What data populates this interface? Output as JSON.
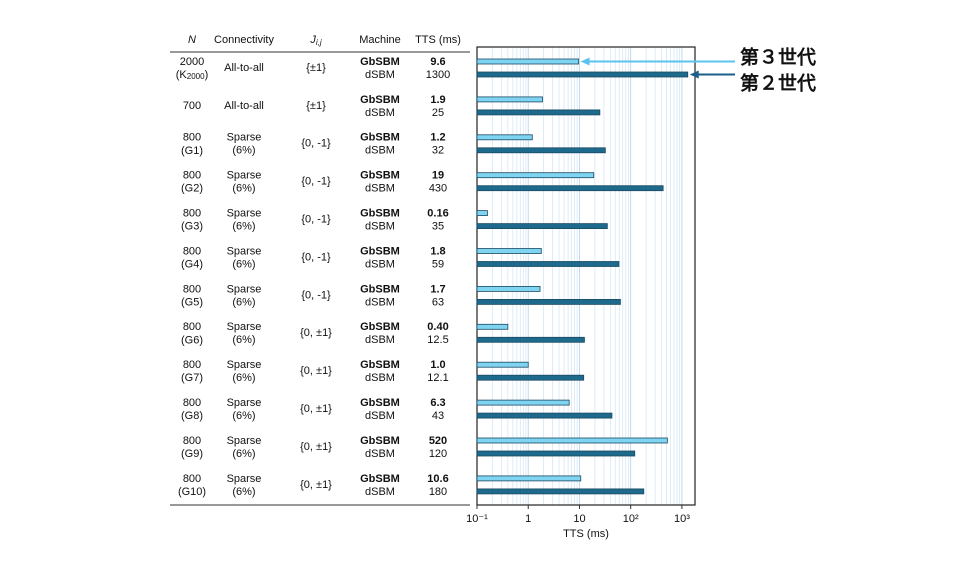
{
  "chart_data": {
    "type": "bar",
    "orientation": "horizontal",
    "log_scale": true,
    "headers": [
      "N",
      "Connectivity",
      {
        "text": "J",
        "sub": "i,j"
      },
      "Machine",
      "TTS (ms)"
    ],
    "rows": [
      {
        "n": "2000",
        "instance": "(K",
        "instance_sub": "2000",
        "instance_close": ")",
        "connectivity": [
          "All-to-all"
        ],
        "jij": "{±1}"
      },
      {
        "n": "700",
        "connectivity": [
          "All-to-all"
        ],
        "jij": "{±1}"
      },
      {
        "n": "800",
        "instance": "(G1)",
        "connectivity": [
          "Sparse",
          "(6%)"
        ],
        "jij": "{0, -1}"
      },
      {
        "n": "800",
        "instance": "(G2)",
        "connectivity": [
          "Sparse",
          "(6%)"
        ],
        "jij": "{0, -1}"
      },
      {
        "n": "800",
        "instance": "(G3)",
        "connectivity": [
          "Sparse",
          "(6%)"
        ],
        "jij": "{0, -1}"
      },
      {
        "n": "800",
        "instance": "(G4)",
        "connectivity": [
          "Sparse",
          "(6%)"
        ],
        "jij": "{0, -1}"
      },
      {
        "n": "800",
        "instance": "(G5)",
        "connectivity": [
          "Sparse",
          "(6%)"
        ],
        "jij": "{0, -1}"
      },
      {
        "n": "800",
        "instance": "(G6)",
        "connectivity": [
          "Sparse",
          "(6%)"
        ],
        "jij": "{0, ±1}"
      },
      {
        "n": "800",
        "instance": "(G7)",
        "connectivity": [
          "Sparse",
          "(6%)"
        ],
        "jij": "{0, ±1}"
      },
      {
        "n": "800",
        "instance": "(G8)",
        "connectivity": [
          "Sparse",
          "(6%)"
        ],
        "jij": "{0, ±1}"
      },
      {
        "n": "800",
        "instance": "(G9)",
        "connectivity": [
          "Sparse",
          "(6%)"
        ],
        "jij": "{0, ±1}"
      },
      {
        "n": "800",
        "instance": "(G10)",
        "connectivity": [
          "Sparse",
          "(6%)"
        ],
        "jij": "{0, ±1}"
      }
    ],
    "series": [
      {
        "name": "GbSBM",
        "annotation": "第３世代",
        "color": "#7fd4f2",
        "annotation_color": "#5bc3ee",
        "values": [
          9.6,
          1.9,
          1.2,
          19,
          0.16,
          1.8,
          1.7,
          0.4,
          1.0,
          6.3,
          520,
          10.6
        ],
        "value_labels": [
          "9.6",
          "1.9",
          "1.2",
          "19",
          "0.16",
          "1.8",
          "1.7",
          "0.40",
          "1.0",
          "6.3",
          "520",
          "10.6"
        ]
      },
      {
        "name": "dSBM",
        "annotation": "第２世代",
        "color": "#1d6a8c",
        "annotation_color": "#1a5f8a",
        "values": [
          1300,
          25,
          32,
          430,
          35,
          59,
          63,
          12.5,
          12.1,
          43,
          120,
          180
        ]
      }
    ],
    "xlabel": "TTS (ms)",
    "xlim": [
      0.1,
      1800
    ],
    "xticks": [
      {
        "value": 0.1,
        "label": "10⁻¹"
      },
      1,
      10,
      {
        "value": 100,
        "label": "10²"
      },
      {
        "value": 1000,
        "label": "10³"
      }
    ],
    "grid": true,
    "minor_grid": true
  }
}
